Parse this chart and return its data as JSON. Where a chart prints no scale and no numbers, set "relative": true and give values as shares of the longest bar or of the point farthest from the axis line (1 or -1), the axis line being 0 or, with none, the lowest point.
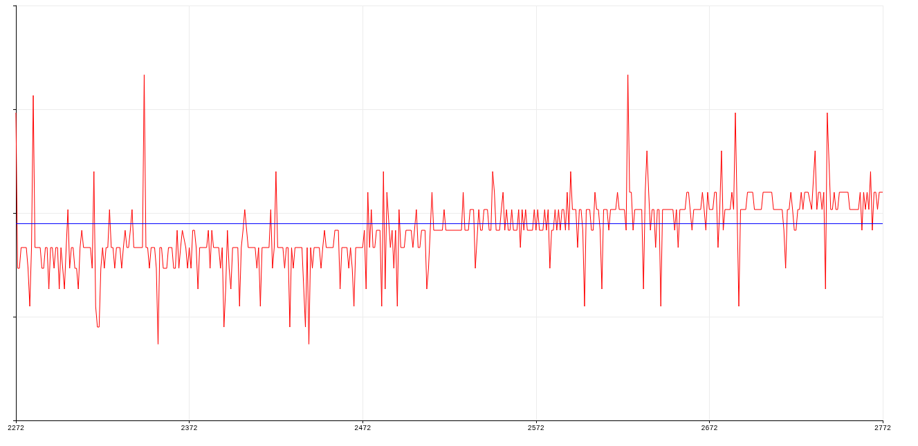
{
  "chart_data": {
    "type": "line",
    "relative": true,
    "color": "#ff0000",
    "x": [
      2272,
      2273,
      2274,
      2275,
      2278,
      2279,
      2280,
      2281,
      2282,
      2283,
      2286,
      2287,
      2288,
      2289,
      2290,
      2291,
      2292,
      2293,
      2294,
      2295,
      2296,
      2297,
      2298,
      2299,
      2300,
      2301,
      2302,
      2303,
      2304,
      2305,
      2306,
      2307,
      2308,
      2309,
      2310,
      2311,
      2315,
      2316,
      2317,
      2318,
      2319,
      2320,
      2321,
      2322,
      2323,
      2324,
      2325,
      2326,
      2327,
      2328,
      2329,
      2330,
      2332,
      2333,
      2334,
      2335,
      2336,
      2337,
      2338,
      2339,
      2340,
      2345,
      2346,
      2347,
      2348,
      2349,
      2350,
      2352,
      2353,
      2354,
      2355,
      2356,
      2357,
      2359,
      2360,
      2362,
      2363,
      2364,
      2365,
      2366,
      2367,
      2368,
      2370,
      2371,
      2372,
      2373,
      2374,
      2375,
      2376,
      2377,
      2378,
      2382,
      2383,
      2384,
      2385,
      2386,
      2389,
      2390,
      2391,
      2392,
      2393,
      2394,
      2395,
      2396,
      2397,
      2400,
      2401,
      2402,
      2403,
      2404,
      2406,
      2410,
      2411,
      2412,
      2413,
      2414,
      2418,
      2419,
      2420,
      2421,
      2422,
      2423,
      2426,
      2427,
      2428,
      2429,
      2430,
      2431,
      2432,
      2433,
      2437,
      2439,
      2440,
      2441,
      2442,
      2443,
      2444,
      2447,
      2448,
      2449,
      2450,
      2451,
      2455,
      2456,
      2458,
      2459,
      2460,
      2463,
      2464,
      2465,
      2466,
      2467,
      2468,
      2472,
      2473,
      2474,
      2475,
      2476,
      2477,
      2478,
      2479,
      2480,
      2482,
      2483,
      2484,
      2485,
      2486,
      2488,
      2489,
      2490,
      2491,
      2492,
      2493,
      2494,
      2496,
      2497,
      2500,
      2501,
      2503,
      2504,
      2505,
      2506,
      2508,
      2509,
      2510,
      2512,
      2513,
      2518,
      2519,
      2520,
      2529,
      2530,
      2531,
      2533,
      2534,
      2536,
      2537,
      2539,
      2540,
      2541,
      2542,
      2544,
      2545,
      2546,
      2547,
      2548,
      2549,
      2551,
      2552,
      2553,
      2554,
      2555,
      2556,
      2557,
      2558,
      2559,
      2561,
      2562,
      2563,
      2564,
      2565,
      2566,
      2567,
      2570,
      2571,
      2572,
      2573,
      2574,
      2576,
      2577,
      2578,
      2579,
      2580,
      2581,
      2582,
      2583,
      2584,
      2585,
      2586,
      2587,
      2588,
      2589,
      2590,
      2591,
      2592,
      2593,
      2595,
      2596,
      2597,
      2598,
      2599,
      2600,
      2601,
      2603,
      2604,
      2605,
      2606,
      2607,
      2608,
      2609,
      2610,
      2611,
      2613,
      2614,
      2615,
      2618,
      2619,
      2620,
      2623,
      2624,
      2625,
      2626,
      2627,
      2628,
      2629,
      2633,
      2634,
      2635,
      2636,
      2637,
      2638,
      2639,
      2640,
      2641,
      2642,
      2643,
      2644,
      2645,
      2651,
      2652,
      2653,
      2654,
      2655,
      2658,
      2659,
      2660,
      2662,
      2663,
      2667,
      2668,
      2669,
      2670,
      2671,
      2672,
      2674,
      2675,
      2676,
      2677,
      2678,
      2679,
      2680,
      2681,
      2684,
      2685,
      2686,
      2687,
      2689,
      2690,
      2693,
      2694,
      2697,
      2698,
      2702,
      2703,
      2708,
      2709,
      2714,
      2715,
      2716,
      2717,
      2718,
      2719,
      2720,
      2721,
      2722,
      2723,
      2724,
      2725,
      2726,
      2727,
      2729,
      2731,
      2733,
      2734,
      2735,
      2736,
      2737,
      2738,
      2739,
      2740,
      2742,
      2743,
      2744,
      2745,
      2746,
      2747,
      2752,
      2753,
      2758,
      2759,
      2760,
      2761,
      2762,
      2763,
      2764,
      2765,
      2766,
      2767,
      2768,
      2769,
      2770,
      2772
    ],
    "values": [
      0.89,
      0.44,
      0.44,
      0.5,
      0.5,
      0.44,
      0.33,
      0.5,
      0.94,
      0.5,
      0.5,
      0.44,
      0.44,
      0.5,
      0.5,
      0.38,
      0.5,
      0.5,
      0.44,
      0.5,
      0.5,
      0.38,
      0.5,
      0.44,
      0.38,
      0.5,
      0.61,
      0.44,
      0.5,
      0.5,
      0.44,
      0.44,
      0.38,
      0.5,
      0.55,
      0.5,
      0.5,
      0.44,
      0.72,
      0.33,
      0.27,
      0.27,
      0.44,
      0.5,
      0.44,
      0.5,
      0.5,
      0.61,
      0.5,
      0.5,
      0.44,
      0.5,
      0.5,
      0.44,
      0.5,
      0.55,
      0.5,
      0.5,
      0.55,
      0.61,
      0.5,
      0.5,
      1,
      0.5,
      0.5,
      0.44,
      0.5,
      0.5,
      0.44,
      0.22,
      0.5,
      0.5,
      0.44,
      0.44,
      0.5,
      0.5,
      0.44,
      0.44,
      0.55,
      0.44,
      0.5,
      0.55,
      0.5,
      0.44,
      0.5,
      0.44,
      0.55,
      0.55,
      0.5,
      0.38,
      0.5,
      0.5,
      0.55,
      0.44,
      0.55,
      0.5,
      0.5,
      0.44,
      0.5,
      0.27,
      0.38,
      0.55,
      0.44,
      0.38,
      0.5,
      0.5,
      0.33,
      0.5,
      0.55,
      0.61,
      0.5,
      0.5,
      0.44,
      0.5,
      0.33,
      0.5,
      0.5,
      0.61,
      0.44,
      0.5,
      0.72,
      0.5,
      0.5,
      0.44,
      0.5,
      0.5,
      0.27,
      0.5,
      0.44,
      0.5,
      0.5,
      0.27,
      0.5,
      0.22,
      0.5,
      0.44,
      0.5,
      0.5,
      0.44,
      0.5,
      0.55,
      0.5,
      0.5,
      0.55,
      0.55,
      0.38,
      0.5,
      0.5,
      0.44,
      0.5,
      0.44,
      0.33,
      0.5,
      0.5,
      0.55,
      0.38,
      0.66,
      0.5,
      0.61,
      0.5,
      0.5,
      0.55,
      0.55,
      0.33,
      0.72,
      0.38,
      0.66,
      0.5,
      0.55,
      0.44,
      0.55,
      0.33,
      0.61,
      0.5,
      0.5,
      0.55,
      0.55,
      0.5,
      0.61,
      0.5,
      0.5,
      0.55,
      0.55,
      0.38,
      0.44,
      0.66,
      0.55,
      0.55,
      0.61,
      0.55,
      0.55,
      0.66,
      0.55,
      0.55,
      0.61,
      0.61,
      0.44,
      0.61,
      0.55,
      0.55,
      0.61,
      0.61,
      0.55,
      0.55,
      0.72,
      0.66,
      0.55,
      0.55,
      0.61,
      0.66,
      0.55,
      0.61,
      0.55,
      0.55,
      0.61,
      0.55,
      0.55,
      0.61,
      0.5,
      0.61,
      0.55,
      0.61,
      0.55,
      0.55,
      0.61,
      0.55,
      0.61,
      0.55,
      0.55,
      0.61,
      0.55,
      0.61,
      0.44,
      0.55,
      0.55,
      0.61,
      0.55,
      0.61,
      0.55,
      0.61,
      0.61,
      0.55,
      0.66,
      0.55,
      0.72,
      0.61,
      0.61,
      0.5,
      0.61,
      0.61,
      0.55,
      0.33,
      0.61,
      0.61,
      0.55,
      0.55,
      0.66,
      0.61,
      0.61,
      0.55,
      0.38,
      0.61,
      0.61,
      0.55,
      0.61,
      0.61,
      0.66,
      0.61,
      0.61,
      0.55,
      1,
      0.66,
      0.66,
      0.55,
      0.61,
      0.61,
      0.38,
      0.66,
      0.78,
      0.66,
      0.55,
      0.61,
      0.61,
      0.5,
      0.61,
      0.61,
      0.33,
      0.61,
      0.61,
      0.55,
      0.61,
      0.5,
      0.61,
      0.61,
      0.66,
      0.66,
      0.55,
      0.61,
      0.61,
      0.66,
      0.61,
      0.55,
      0.66,
      0.61,
      0.61,
      0.66,
      0.66,
      0.5,
      0.61,
      0.78,
      0.55,
      0.61,
      0.61,
      0.66,
      0.61,
      0.89,
      0.33,
      0.61,
      0.61,
      0.66,
      0.66,
      0.61,
      0.61,
      0.66,
      0.66,
      0.61,
      0.61,
      0.55,
      0.44,
      0.61,
      0.61,
      0.66,
      0.61,
      0.55,
      0.55,
      0.61,
      0.61,
      0.66,
      0.61,
      0.66,
      0.66,
      0.61,
      0.78,
      0.61,
      0.66,
      0.66,
      0.61,
      0.66,
      0.38,
      0.89,
      0.61,
      0.61,
      0.66,
      0.61,
      0.61,
      0.66,
      0.66,
      0.61,
      0.61,
      0.66,
      0.55,
      0.66,
      0.61,
      0.66,
      0.61,
      0.72,
      0.55,
      0.66,
      0.66,
      0.61,
      0.66,
      0.66
    ],
    "xlim": [
      2272,
      2772
    ],
    "xticks": [
      2272,
      2372,
      2472,
      2572,
      2672,
      2772
    ],
    "grid": true,
    "ref_lines": [
      {
        "axis": "y",
        "value": 0.57,
        "color": "#0000ff"
      }
    ]
  }
}
